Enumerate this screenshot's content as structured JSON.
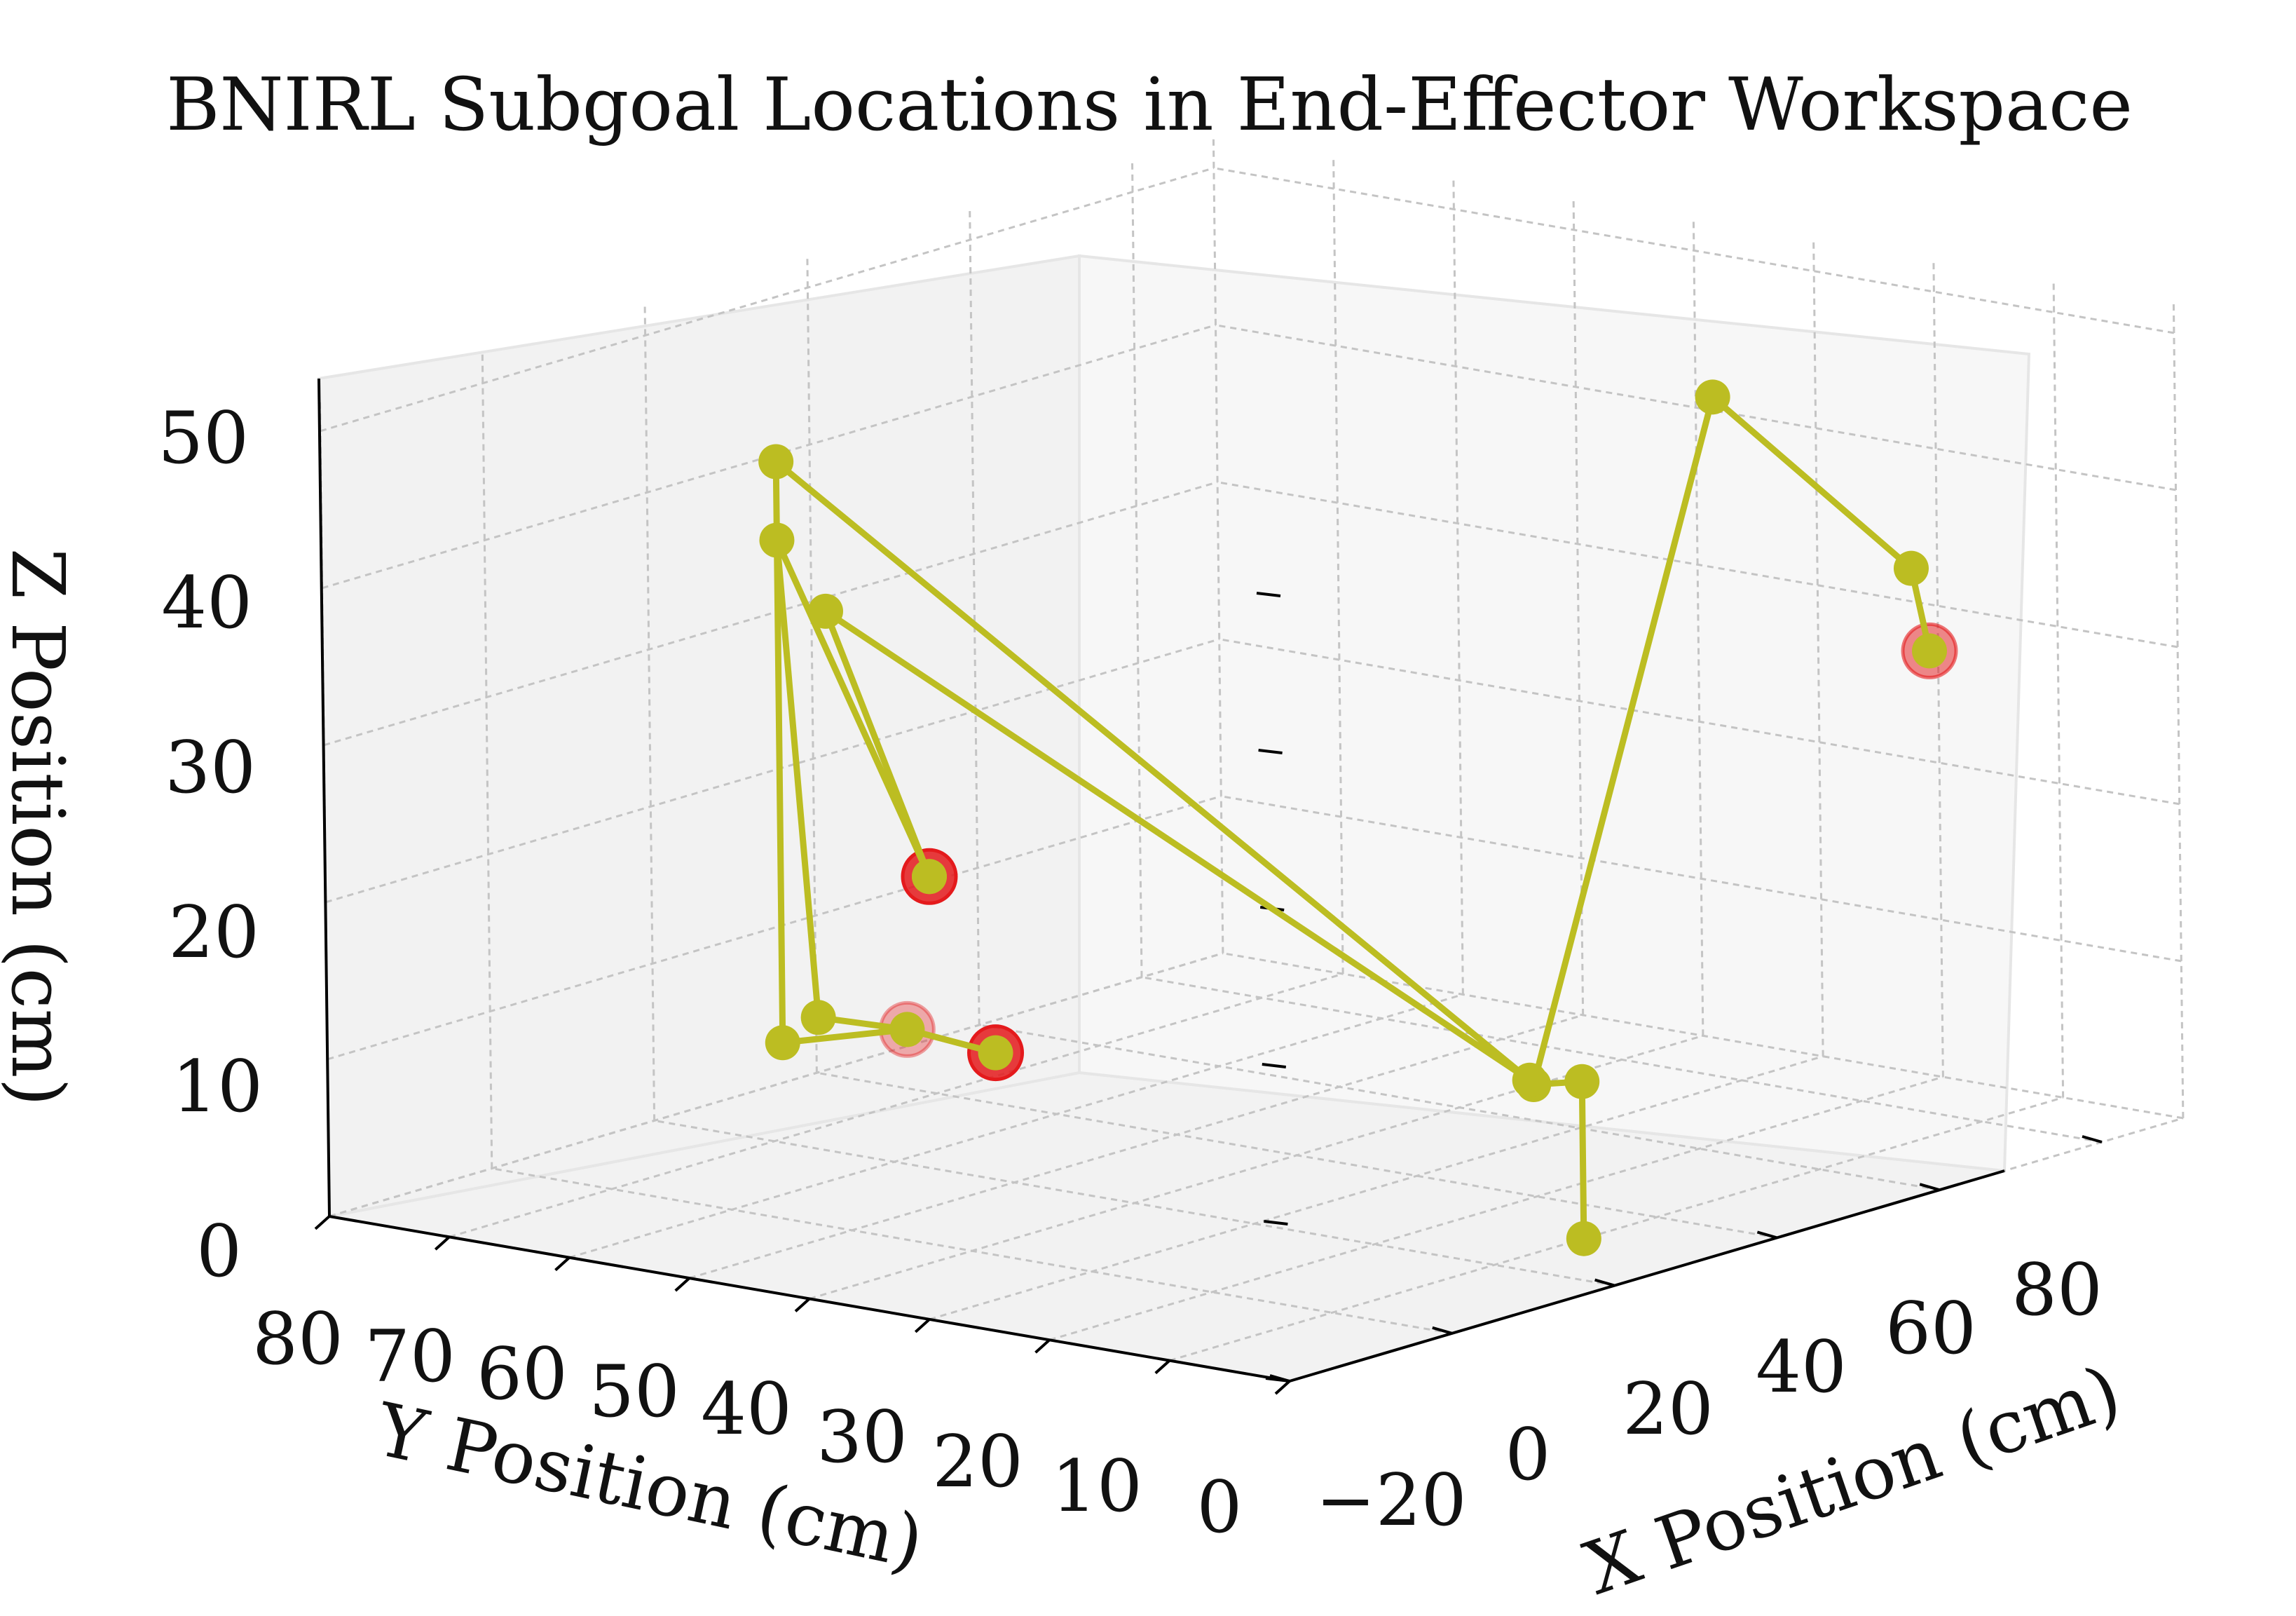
{
  "chart_data": {
    "type": "line3d",
    "title": "BNIRL Subgoal Locations in End-Effector Workspace",
    "xlabel": "X Position (cm)",
    "ylabel": "Y Position (cm)",
    "zlabel": "Z Position (cm)",
    "xlim": [
      -20,
      90
    ],
    "ylim": [
      0,
      80
    ],
    "zlim": [
      0,
      52
    ],
    "x_ticks": [
      "−20",
      "0",
      "20",
      "40",
      "60",
      "80"
    ],
    "y_ticks": [
      "80",
      "70",
      "60",
      "50",
      "40",
      "30",
      "20",
      "10",
      "0"
    ],
    "z_ticks": [
      "0",
      "10",
      "20",
      "30",
      "40",
      "50"
    ],
    "grid": true,
    "series": [
      {
        "color": "#bcbd22",
        "points": [
          {
            "x": 31,
            "y": 10,
            "z": 0
          },
          {
            "x": 31,
            "y": 10,
            "z": 10
          },
          {
            "x": 28,
            "y": 12,
            "z": 10
          },
          {
            "x": 48,
            "y": 10,
            "z": 51
          },
          {
            "x": 78,
            "y": 14,
            "z": 35
          },
          {
            "x": 86,
            "y": 18,
            "z": 28
          }
        ]
      },
      {
        "color": "#bcbd22",
        "points": [
          {
            "x": 10,
            "y": 50,
            "z": 21
          },
          {
            "x": 5,
            "y": 59,
            "z": 42
          },
          {
            "x": 5,
            "y": 56,
            "z": 12
          },
          {
            "x": 10,
            "y": 52,
            "z": 11
          },
          {
            "x": 12,
            "y": 46,
            "z": 10
          }
        ]
      },
      {
        "color": "#bcbd22",
        "points": [
          {
            "x": 10,
            "y": 50,
            "z": 21
          },
          {
            "x": 5,
            "y": 55,
            "z": 38
          },
          {
            "x": 29,
            "y": 13,
            "z": 10
          },
          {
            "x": 5,
            "y": 59,
            "z": 47
          },
          {
            "x": 5,
            "y": 59,
            "z": 10
          },
          {
            "x": 10,
            "y": 52,
            "z": 11
          }
        ]
      }
    ],
    "subgoals": [
      {
        "x": 12,
        "y": 46,
        "z": 10,
        "color": "#e41a1c",
        "alpha": 1.0
      },
      {
        "x": 10,
        "y": 50,
        "z": 21,
        "color": "#e41a1c",
        "alpha": 1.0
      },
      {
        "x": 10,
        "y": 52,
        "z": 11,
        "color": "#e41a1c",
        "alpha": 0.4
      },
      {
        "x": 86,
        "y": 18,
        "z": 28,
        "color": "#e41a1c",
        "alpha": 0.6
      }
    ]
  }
}
